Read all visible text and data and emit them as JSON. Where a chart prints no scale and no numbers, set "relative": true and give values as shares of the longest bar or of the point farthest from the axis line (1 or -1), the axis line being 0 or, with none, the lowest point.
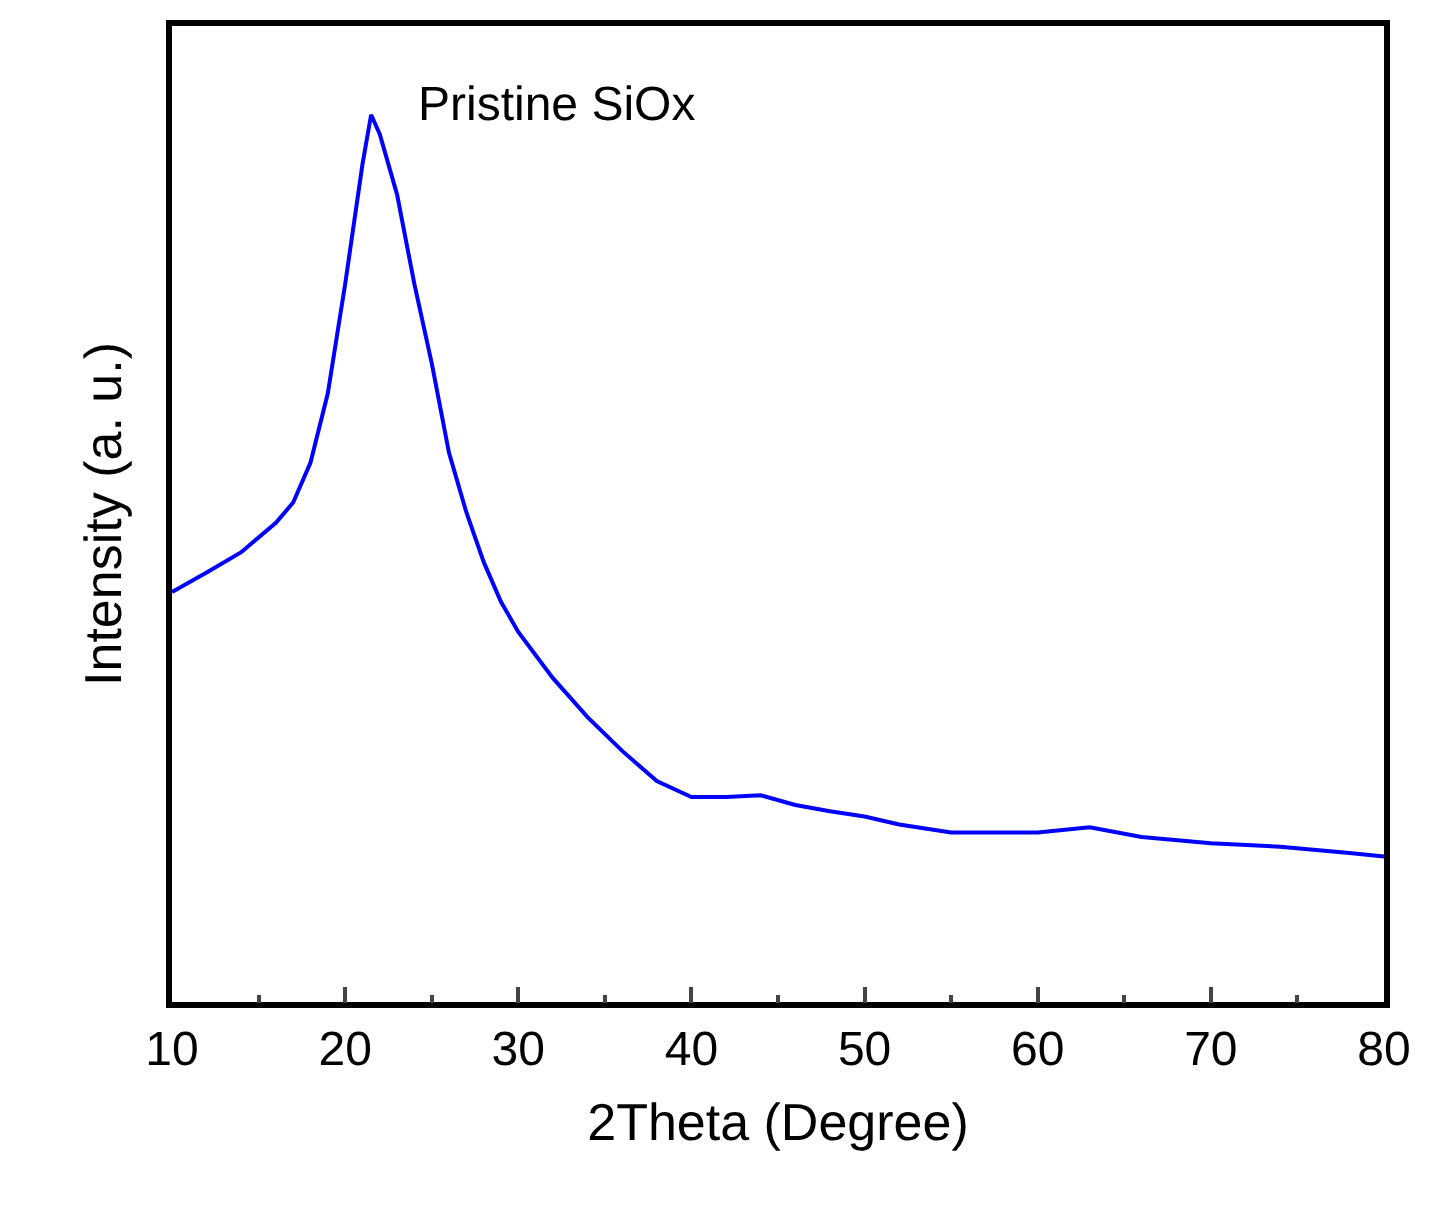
{
  "chart_data": {
    "type": "line",
    "relative": true,
    "xlabel": "2Theta (Degree)",
    "ylabel": "Intensity (a. u.)",
    "annotations": [
      "Pristine SiOx"
    ],
    "x": [
      10,
      12,
      14,
      16,
      17,
      18,
      19,
      20,
      21,
      21.5,
      22,
      23,
      24,
      25,
      26,
      27,
      28,
      29,
      30,
      32,
      34,
      36,
      38,
      40,
      42,
      44,
      46,
      48,
      50,
      52,
      55,
      58,
      60,
      63,
      66,
      70,
      74,
      78,
      80
    ],
    "series": [
      {
        "color": "#0000ff",
        "values": [
          0.462,
          0.484,
          0.507,
          0.54,
          0.563,
          0.608,
          0.686,
          0.809,
          0.944,
          1.0,
          0.978,
          0.91,
          0.809,
          0.72,
          0.619,
          0.552,
          0.496,
          0.451,
          0.417,
          0.365,
          0.321,
          0.283,
          0.249,
          0.231,
          0.231,
          0.233,
          0.222,
          0.215,
          0.209,
          0.2,
          0.191,
          0.191,
          0.191,
          0.197,
          0.186,
          0.179,
          0.175,
          0.168,
          0.164
        ]
      }
    ],
    "xlim": [
      10,
      80
    ],
    "xticks": [
      10,
      20,
      30,
      40,
      50,
      60,
      70,
      80
    ],
    "marker": "none",
    "line_style": "solid"
  }
}
